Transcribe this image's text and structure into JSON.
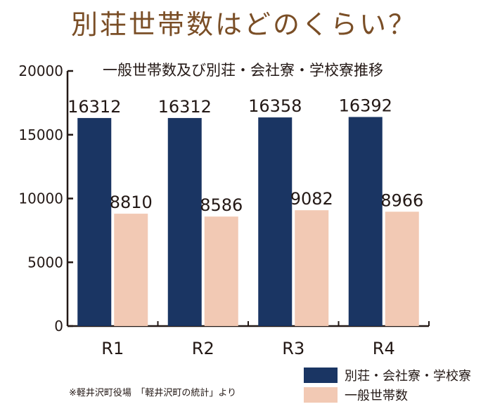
{
  "headline": "別荘世帯数はどのくらい？",
  "source_note": "※軽井沢町役場　「軽井沢町の統計」より",
  "colors": {
    "navy": "#1a3563",
    "peach": "#f2c9b4",
    "axis": "#231815"
  },
  "chart_data": {
    "type": "bar",
    "title": "一般世帯数及び別荘・会社寮・学校寮推移",
    "categories": [
      "R1",
      "R2",
      "R3",
      "R4"
    ],
    "series": [
      {
        "name": "別荘・会社寮・学校寮",
        "values": [
          16312,
          16312,
          16358,
          16392
        ],
        "color": "#1a3563"
      },
      {
        "name": "一般世帯数",
        "values": [
          8810,
          8586,
          9082,
          8966
        ],
        "color": "#f2c9b4"
      }
    ],
    "y_ticks": [
      "0",
      "5000",
      "10000",
      "15000",
      "20000"
    ],
    "ylim": [
      0,
      20000
    ],
    "grid": false,
    "legend_position": "bottom-right"
  }
}
